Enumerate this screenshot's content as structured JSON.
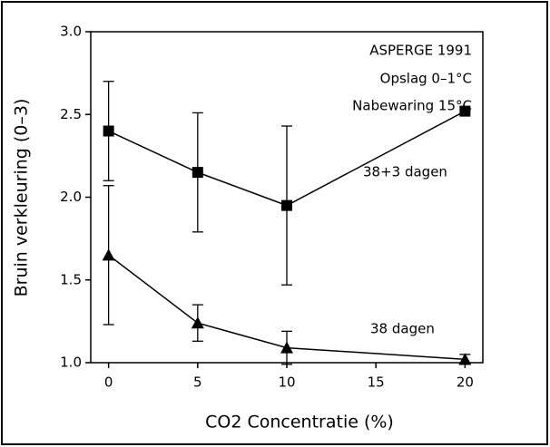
{
  "chart_data": {
    "type": "line",
    "x_label": "CO2 Concentratie (%)",
    "y_label": "Bruin verkleuring (0–3)",
    "annotations": [
      "ASPERGE 1991",
      "Opslag 0–1°C",
      "Nabewaring 15°C"
    ],
    "x": [
      0,
      5,
      10,
      20
    ],
    "xlim": [
      -1,
      21
    ],
    "xticks": [
      0,
      5,
      10,
      15,
      20
    ],
    "ylim": [
      1,
      3
    ],
    "yticks": [
      {
        "value": 1,
        "label": "1.0"
      },
      1.5,
      {
        "value": 2,
        "label": "2.0"
      },
      2.5,
      {
        "value": 3,
        "label": "3.0"
      }
    ],
    "series": [
      {
        "name": "38+3 dagen",
        "color": "#000000",
        "marker": "square",
        "values": [
          2.4,
          2.15,
          1.95,
          2.52
        ],
        "errors": [
          0.3,
          0.36,
          0.48,
          null
        ]
      },
      {
        "name": "38 dagen",
        "color": "#000000",
        "marker": "triangle",
        "values": [
          1.65,
          1.24,
          1.09,
          1.02
        ],
        "errors": [
          0.42,
          0.11,
          0.1,
          0.03
        ]
      }
    ]
  }
}
